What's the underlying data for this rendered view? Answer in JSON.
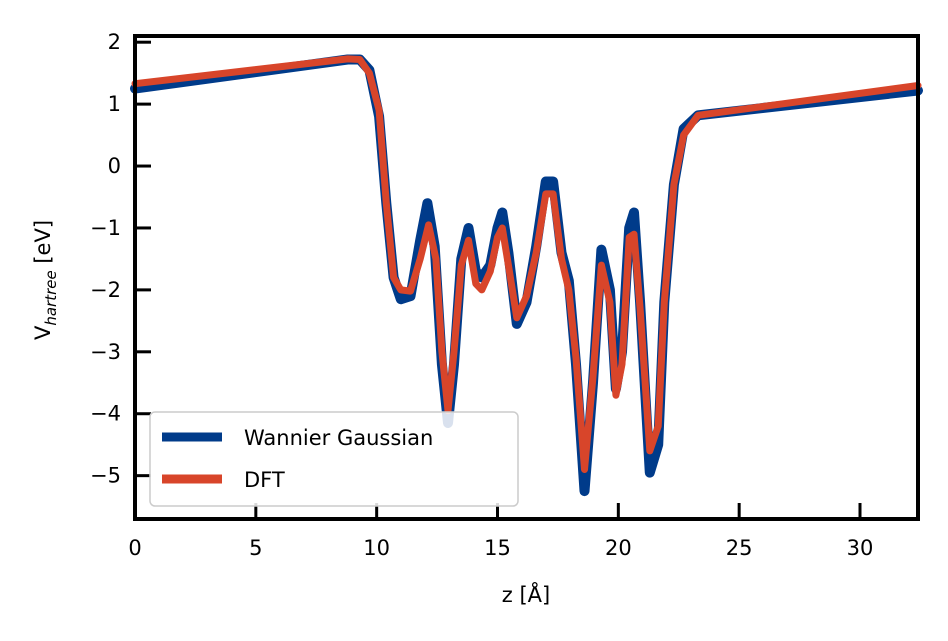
{
  "chart_data": {
    "type": "line",
    "xlabel": "z [Å]",
    "ylabel_main": "V",
    "ylabel_sub": "hartree",
    "ylabel_unit": " [eV]",
    "xlim": [
      0,
      32.4
    ],
    "ylim": [
      -5.7,
      2.1
    ],
    "xticks": [
      0,
      5,
      10,
      15,
      20,
      25,
      30
    ],
    "yticks": [
      2,
      1,
      0,
      -1,
      -2,
      -3,
      -4,
      -5
    ],
    "ytick_labels": [
      "2",
      "1",
      "0",
      "−1",
      "−2",
      "−3",
      "−4",
      "−5"
    ],
    "grid": false,
    "legend_position": "lower-left",
    "series": [
      {
        "name": "Wannier Gaussian",
        "color": "#003b8a",
        "points": [
          [
            0,
            1.25
          ],
          [
            8.8,
            1.72
          ],
          [
            9.3,
            1.72
          ],
          [
            9.7,
            1.55
          ],
          [
            10.1,
            0.8
          ],
          [
            10.4,
            -0.6
          ],
          [
            10.7,
            -1.8
          ],
          [
            11.0,
            -2.15
          ],
          [
            11.4,
            -2.1
          ],
          [
            11.8,
            -1.2
          ],
          [
            12.1,
            -0.6
          ],
          [
            12.4,
            -1.3
          ],
          [
            12.7,
            -3.2
          ],
          [
            12.95,
            -4.15
          ],
          [
            13.2,
            -3.2
          ],
          [
            13.5,
            -1.5
          ],
          [
            13.8,
            -1.0
          ],
          [
            14.1,
            -1.7
          ],
          [
            14.35,
            -1.8
          ],
          [
            14.7,
            -1.6
          ],
          [
            15.0,
            -1.0
          ],
          [
            15.2,
            -0.75
          ],
          [
            15.45,
            -1.4
          ],
          [
            15.8,
            -2.55
          ],
          [
            16.2,
            -2.2
          ],
          [
            16.6,
            -1.3
          ],
          [
            17.0,
            -0.25
          ],
          [
            17.3,
            -0.25
          ],
          [
            17.65,
            -1.4
          ],
          [
            17.95,
            -1.85
          ],
          [
            18.25,
            -3.2
          ],
          [
            18.6,
            -5.25
          ],
          [
            18.95,
            -3.5
          ],
          [
            19.3,
            -1.35
          ],
          [
            19.65,
            -2.0
          ],
          [
            19.9,
            -3.6
          ],
          [
            20.15,
            -3.0
          ],
          [
            20.45,
            -1.0
          ],
          [
            20.65,
            -0.75
          ],
          [
            20.9,
            -2.2
          ],
          [
            21.3,
            -4.95
          ],
          [
            21.65,
            -4.5
          ],
          [
            21.9,
            -2.2
          ],
          [
            22.3,
            -0.3
          ],
          [
            22.7,
            0.6
          ],
          [
            23.3,
            0.82
          ],
          [
            32.4,
            1.22
          ]
        ]
      },
      {
        "name": "DFT",
        "color": "#d8452a",
        "points": [
          [
            0,
            1.33
          ],
          [
            8.8,
            1.73
          ],
          [
            9.3,
            1.72
          ],
          [
            9.7,
            1.5
          ],
          [
            10.1,
            0.9
          ],
          [
            10.4,
            -0.6
          ],
          [
            10.7,
            -1.8
          ],
          [
            11.0,
            -2.0
          ],
          [
            11.4,
            -2.02
          ],
          [
            11.8,
            -1.5
          ],
          [
            12.15,
            -0.95
          ],
          [
            12.45,
            -1.5
          ],
          [
            12.7,
            -3.0
          ],
          [
            12.95,
            -3.95
          ],
          [
            13.2,
            -3.0
          ],
          [
            13.5,
            -1.6
          ],
          [
            13.8,
            -1.2
          ],
          [
            14.1,
            -1.9
          ],
          [
            14.35,
            -2.0
          ],
          [
            14.7,
            -1.7
          ],
          [
            15.0,
            -1.15
          ],
          [
            15.2,
            -1.0
          ],
          [
            15.45,
            -1.6
          ],
          [
            15.8,
            -2.45
          ],
          [
            16.2,
            -2.1
          ],
          [
            16.6,
            -1.4
          ],
          [
            17.0,
            -0.45
          ],
          [
            17.3,
            -0.45
          ],
          [
            17.65,
            -1.5
          ],
          [
            17.95,
            -2.0
          ],
          [
            18.25,
            -3.1
          ],
          [
            18.6,
            -4.9
          ],
          [
            18.95,
            -3.4
          ],
          [
            19.3,
            -1.6
          ],
          [
            19.65,
            -2.2
          ],
          [
            19.9,
            -3.7
          ],
          [
            20.15,
            -3.2
          ],
          [
            20.45,
            -1.15
          ],
          [
            20.65,
            -1.1
          ],
          [
            20.9,
            -2.3
          ],
          [
            21.3,
            -4.6
          ],
          [
            21.65,
            -4.2
          ],
          [
            21.9,
            -2.2
          ],
          [
            22.3,
            -0.3
          ],
          [
            22.7,
            0.5
          ],
          [
            23.3,
            0.82
          ],
          [
            32.4,
            1.3
          ]
        ]
      }
    ]
  }
}
